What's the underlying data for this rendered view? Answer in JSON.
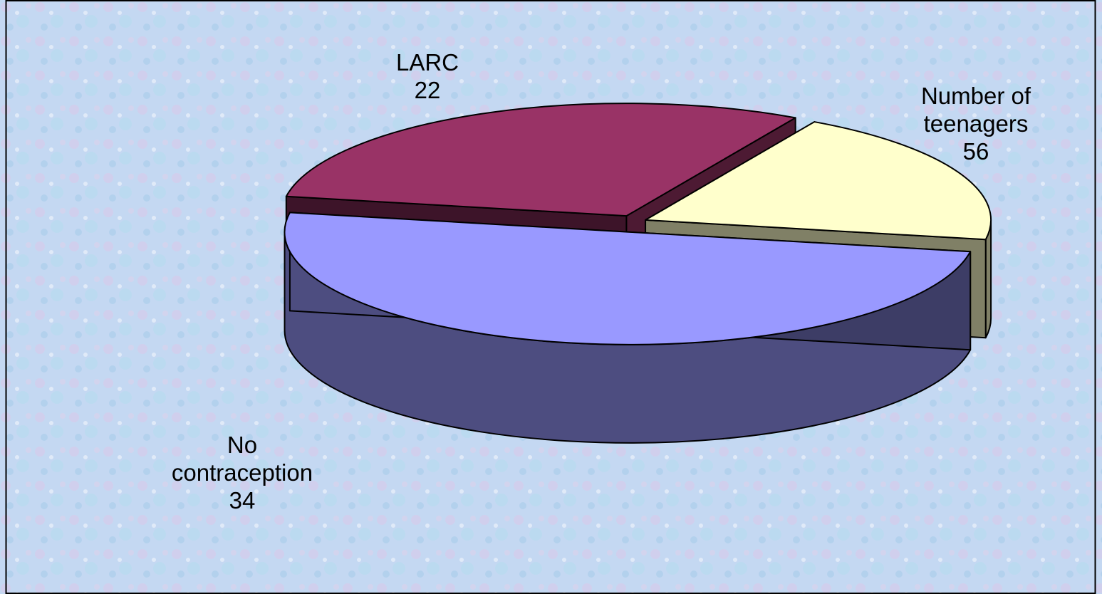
{
  "chart_data": {
    "type": "pie",
    "style": "3d-exploded",
    "title": "",
    "slices": [
      {
        "label_lines": [
          "Number of",
          "teenagers"
        ],
        "value": 56,
        "color": "#9999FF"
      },
      {
        "label_lines": [
          "LARC"
        ],
        "value": 22,
        "color": "#FFFFCC"
      },
      {
        "label_lines": [
          "No",
          "contraception"
        ],
        "value": 34,
        "color": "#993366"
      }
    ]
  }
}
